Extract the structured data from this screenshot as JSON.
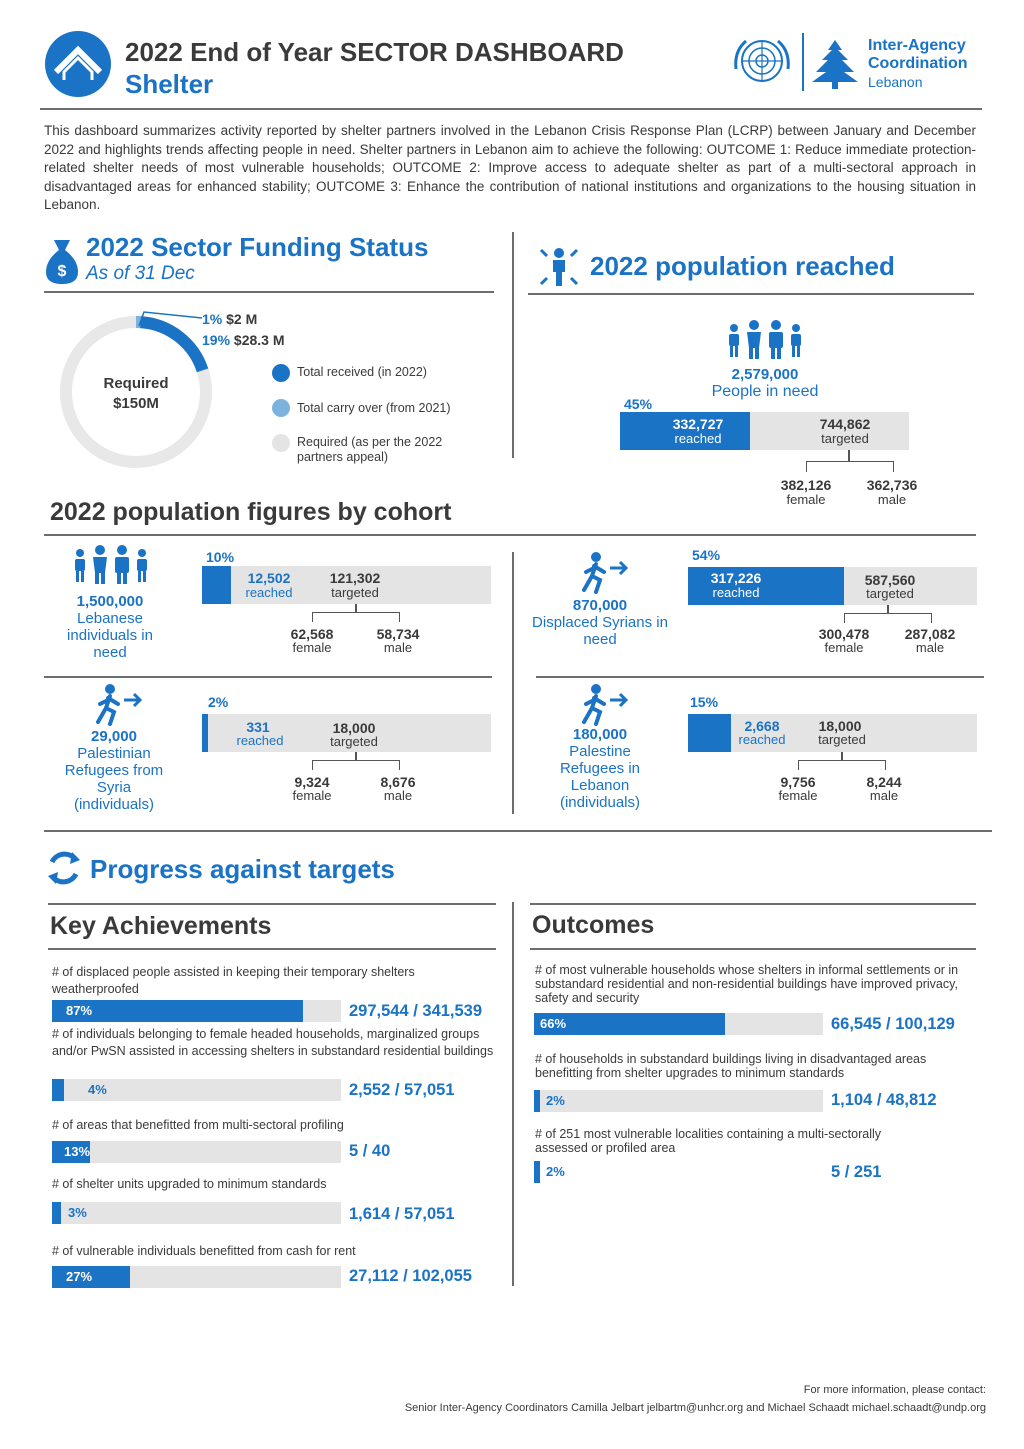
{
  "header": {
    "title": "2022 End of Year SECTOR DASHBOARD",
    "subtitle": "Shelter",
    "logo_text_line1": "Inter-Agency",
    "logo_text_line2": "Coordination",
    "logo_text_line3": "Lebanon"
  },
  "intro": "This dashboard summarizes activity reported by shelter partners involved in the Lebanon Crisis Response Plan (LCRP) between January and December 2022 and highlights trends affecting people in need. Shelter partners in Lebanon aim to achieve the following: OUTCOME 1: Reduce immediate protection-related shelter needs of most vulnerable households; OUTCOME 2: Improve access to adequate shelter as part of a multi-sectoral approach in disadvantaged areas for enhanced stability; OUTCOME 3: Enhance the contribution of national institutions and organizations to the housing situation in Lebanon.",
  "funding": {
    "title": "2022 Sector Funding Status",
    "subtitle": "As of 31 Dec",
    "required_label": "Required",
    "required_value": "$150M",
    "carry_over_pct": "1%",
    "carry_over_value": "$2 M",
    "received_pct": "19%",
    "received_value": "$28.3 M",
    "received_fraction": 0.19,
    "carry_over_fraction": 0.01,
    "legend": [
      {
        "label": "Total received (in 2022)",
        "color": "#1a73c5"
      },
      {
        "label": "Total carry over (from 2021)",
        "color": "#7bb3de"
      },
      {
        "label": "Required (as per the 2022 partners appeal)",
        "color": "#e4e4e4"
      }
    ]
  },
  "population": {
    "title": "2022 population reached",
    "pin_value": "2,579,000",
    "pin_label": "People in need",
    "pct": "45%",
    "reached_value": "332,727",
    "reached_label": "reached",
    "targeted_value": "744,862",
    "targeted_label": "targeted",
    "female_value": "382,126",
    "female_label": "female",
    "male_value": "362,736",
    "male_label": "male",
    "fraction": 0.45
  },
  "cohort_title": "2022 population figures by cohort",
  "cohorts": [
    {
      "big": "1,500,000",
      "label": "Lebanese individuals in need",
      "pct": "10%",
      "fraction": 0.1,
      "reached": "12,502",
      "targeted": "121,302",
      "female": "62,568",
      "male": "58,734"
    },
    {
      "big": "870,000",
      "label": "Displaced Syrians in need",
      "pct": "54%",
      "fraction": 0.54,
      "reached": "317,226",
      "targeted": "587,560",
      "female": "300,478",
      "male": "287,082"
    },
    {
      "big": "29,000",
      "label": "Palestinian Refugees from Syria (individuals)",
      "pct": "2%",
      "fraction": 0.02,
      "reached": "331",
      "targeted": "18,000",
      "female": "9,324",
      "male": "8,676"
    },
    {
      "big": "180,000",
      "label": "Palestine Refugees in Lebanon (individuals)",
      "pct": "15%",
      "fraction": 0.15,
      "reached": "2,668",
      "targeted": "18,000",
      "female": "9,756",
      "male": "8,244"
    }
  ],
  "labels": {
    "reached": "reached",
    "targeted": "targeted",
    "female": "female",
    "male": "male"
  },
  "progress_title": "Progress against targets",
  "achievements": {
    "title": "Key Achievements",
    "items": [
      {
        "text": "# of displaced people assisted in keeping their temporary shelters weatherproofed",
        "pct": "87%",
        "fraction": 0.87,
        "value": "297,544 / 341,539"
      },
      {
        "text": "# of individuals belonging to female headed households, marginalized groups and/or PwSN assisted in accessing shelters in substandard residential buildings",
        "pct": "4%",
        "fraction": 0.04,
        "value": "2,552 / 57,051"
      },
      {
        "text": "# of areas that benefitted from multi-sectoral profiling",
        "pct": "13%",
        "fraction": 0.13,
        "value": "5 / 40"
      },
      {
        "text": "# of shelter units upgraded to minimum standards",
        "pct": "3%",
        "fraction": 0.03,
        "value": "1,614 / 57,051"
      },
      {
        "text": "# of vulnerable individuals benefitted from cash for rent",
        "pct": "27%",
        "fraction": 0.27,
        "value": "27,112 / 102,055"
      }
    ]
  },
  "outcomes": {
    "title": "Outcomes",
    "items": [
      {
        "text": "# of most vulnerable households whose shelters in informal settlements or in substandard residential and non-residential buildings have improved privacy, safety and security",
        "pct": "66%",
        "fraction": 0.66,
        "value": "66,545 / 100,129"
      },
      {
        "text": "# of households in substandard buildings living in disadvantaged areas benefitting from shelter upgrades to minimum standards",
        "pct": "2%",
        "fraction": 0.02,
        "value": "1,104 / 48,812"
      },
      {
        "text": "# of 251 most vulnerable localities containing a multi-sectorally assessed or profiled area",
        "pct": "2%",
        "fraction": 0.02,
        "value": "5 / 251"
      }
    ]
  },
  "footer": {
    "line1": "For more information, please contact:",
    "line2": "Senior Inter-Agency Coordinators Camilla Jelbart jelbartm@unhcr.org and Michael Schaadt michael.schaadt@undp.org"
  }
}
